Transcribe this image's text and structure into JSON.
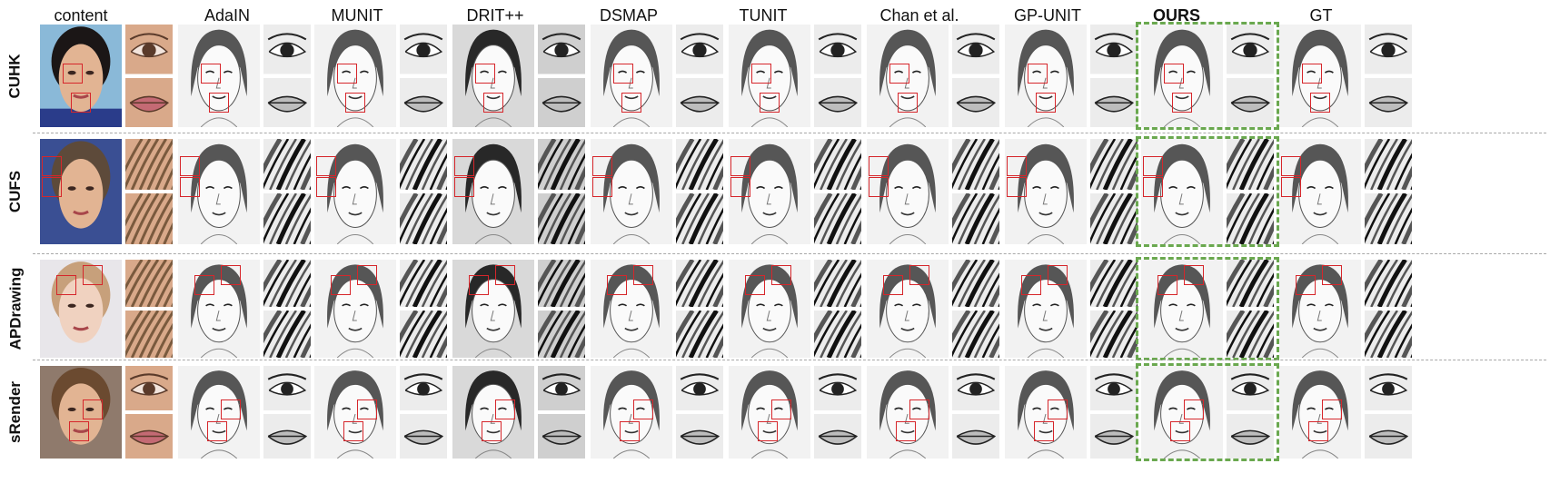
{
  "figure": {
    "columns": [
      {
        "id": "content",
        "label": "content",
        "bold": false
      },
      {
        "id": "adain",
        "label": "AdaIN",
        "bold": false
      },
      {
        "id": "munit",
        "label": "MUNIT",
        "bold": false
      },
      {
        "id": "drit",
        "label": "DRIT++",
        "bold": false
      },
      {
        "id": "dsmap",
        "label": "DSMAP",
        "bold": false
      },
      {
        "id": "tunit",
        "label": "TUNIT",
        "bold": false
      },
      {
        "id": "chan",
        "label": "Chan et al.",
        "bold": false
      },
      {
        "id": "gpunit",
        "label": "GP-UNIT",
        "bold": false
      },
      {
        "id": "ours",
        "label": "OURS",
        "bold": true
      },
      {
        "id": "gt",
        "label": "GT",
        "bold": false
      }
    ],
    "rows": [
      {
        "id": "cuhk",
        "label": "CUHK",
        "crop_subject": [
          "eye",
          "mouth"
        ]
      },
      {
        "id": "cufs",
        "label": "CUFS",
        "crop_subject": [
          "hair",
          "hair"
        ]
      },
      {
        "id": "apdrawing",
        "label": "APDrawing",
        "crop_subject": [
          "hair",
          "hair"
        ]
      },
      {
        "id": "srender",
        "label": "sRender",
        "crop_subject": [
          "eye",
          "mouth"
        ]
      }
    ],
    "highlight_column": "ours",
    "colors": {
      "zoom_box": "#d6262b",
      "highlight": "#6aa84f",
      "separator": "#a8a8a8",
      "photo_bg": "#8ab9d8",
      "sketch_bg": "#f2f2f2"
    }
  }
}
